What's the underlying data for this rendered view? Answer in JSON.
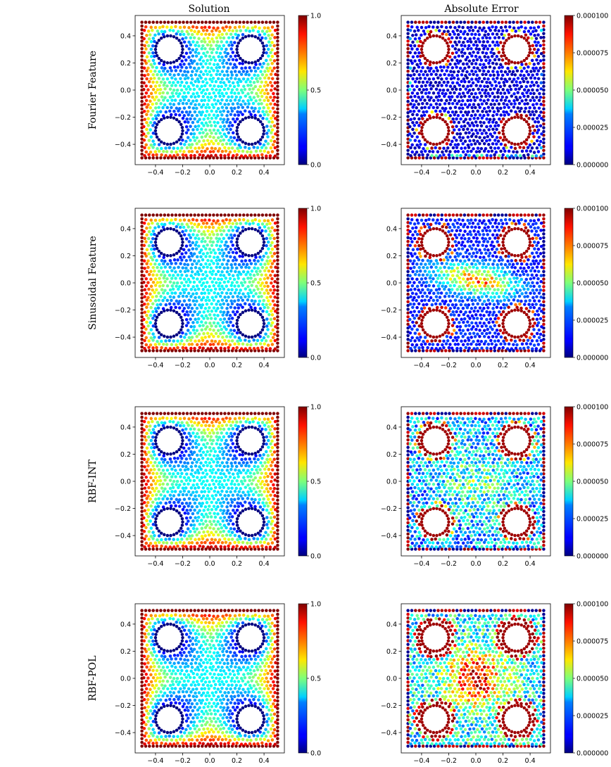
{
  "chart_data": {
    "type": "scatter",
    "column_titles": [
      "Solution",
      "Absolute Error"
    ],
    "rows": [
      {
        "label": "Fourier Feature",
        "error_pattern": "low"
      },
      {
        "label": "Sinusoidal Feature",
        "error_pattern": "center_band"
      },
      {
        "label": "RBF-INT",
        "error_pattern": "moderate"
      },
      {
        "label": "RBF-POL",
        "error_pattern": "high"
      }
    ],
    "domain": {
      "xlim": [
        -0.5,
        0.5
      ],
      "ylim": [
        -0.5,
        0.5
      ]
    },
    "holes": {
      "centers": [
        [
          -0.3,
          0.3
        ],
        [
          0.3,
          0.3
        ],
        [
          -0.3,
          -0.3
        ],
        [
          0.3,
          -0.3
        ]
      ],
      "radius": 0.1
    },
    "x_ticks": [
      "−0.4",
      "−0.2",
      "0.0",
      "0.2",
      "0.4"
    ],
    "y_ticks": [
      "0.4",
      "0.2",
      "0.0",
      "−0.2",
      "−0.4"
    ],
    "solution_colorbar": {
      "range": [
        0.0,
        1.0
      ],
      "ticks": [
        "1.0",
        "0.5",
        "0.0"
      ],
      "colormap": "jet"
    },
    "error_colorbar": {
      "range": [
        0.0,
        0.0001
      ],
      "ticks": [
        "0.000100",
        "0.000075",
        "0.000050",
        "0.000025",
        "0.000000"
      ],
      "colormap": "jet"
    },
    "solution_values_by_row": [
      "u = 1 on outer boundary, decreasing toward 0 at the four circular holes"
    ]
  }
}
